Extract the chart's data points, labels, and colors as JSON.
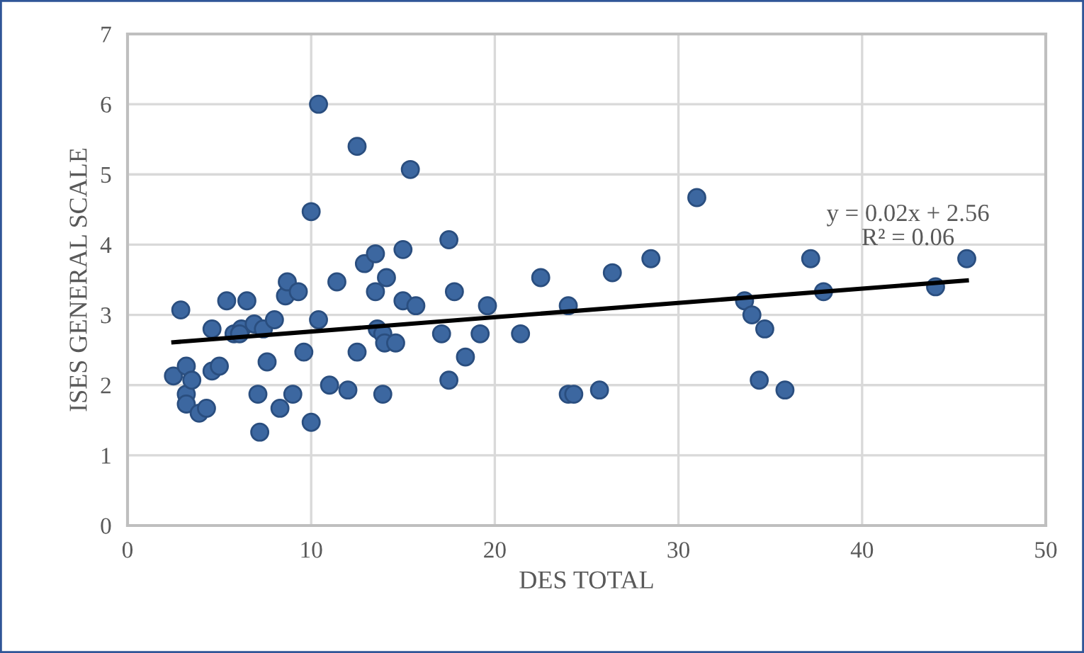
{
  "chart_data": {
    "type": "scatter",
    "xlabel": "DES TOTAL",
    "ylabel": "ISES GENERAL SCALE",
    "xlim": [
      0,
      50
    ],
    "xticks": [
      0,
      10,
      20,
      30,
      40,
      50
    ],
    "ylim": [
      0,
      7
    ],
    "yticks": [
      0,
      1,
      2,
      3,
      4,
      5,
      6,
      7
    ],
    "grid": true,
    "series": [
      {
        "marker": "circle",
        "color": "#3c67a0",
        "x": [
          2.5,
          2.9,
          3.2,
          3.2,
          3.2,
          3.5,
          3.9,
          4.3,
          4.6,
          4.6,
          5.0,
          5.4,
          5.8,
          6.2,
          6.1,
          6.5,
          6.9,
          7.1,
          7.2,
          7.4,
          7.6,
          8.0,
          8.3,
          8.6,
          8.7,
          9.0,
          9.3,
          9.6,
          10.0,
          10.0,
          10.4,
          10.4,
          11.0,
          11.4,
          12.0,
          12.5,
          12.5,
          12.9,
          13.5,
          13.5,
          13.6,
          13.9,
          13.9,
          14.0,
          14.1,
          14.6,
          15.0,
          15.0,
          15.4,
          15.7,
          17.1,
          17.5,
          17.5,
          17.8,
          18.4,
          19.2,
          19.6,
          21.4,
          22.5,
          24.0,
          24.0,
          24.3,
          25.7,
          26.4,
          28.5,
          31.0,
          33.6,
          34.0,
          34.4,
          34.7,
          35.8,
          37.2,
          37.9,
          44.0,
          45.7
        ],
        "values": [
          2.13,
          3.07,
          2.27,
          1.87,
          1.73,
          2.07,
          1.6,
          1.67,
          2.2,
          2.8,
          2.27,
          3.2,
          2.73,
          2.8,
          2.73,
          3.2,
          2.87,
          1.87,
          1.33,
          2.8,
          2.33,
          2.93,
          1.67,
          3.27,
          3.47,
          1.87,
          3.33,
          2.47,
          4.47,
          1.47,
          6.0,
          2.93,
          2.0,
          3.47,
          1.93,
          5.4,
          2.47,
          3.73,
          3.87,
          3.33,
          2.8,
          1.87,
          2.73,
          2.6,
          3.53,
          2.6,
          3.93,
          3.2,
          5.07,
          3.13,
          2.73,
          4.07,
          2.07,
          3.33,
          2.4,
          2.73,
          3.13,
          2.73,
          3.53,
          3.13,
          1.87,
          1.87,
          1.93,
          3.6,
          3.8,
          4.67,
          3.2,
          3.0,
          2.07,
          2.8,
          1.93,
          3.8,
          3.33,
          3.4,
          3.8
        ]
      },
      {
        "type": "line",
        "color": "#000000",
        "x": [
          2.5,
          45.7
        ],
        "values": [
          2.61,
          3.49
        ]
      }
    ],
    "annotations": [
      "y = 0.02x + 2.56\nR² = 0.06"
    ]
  }
}
